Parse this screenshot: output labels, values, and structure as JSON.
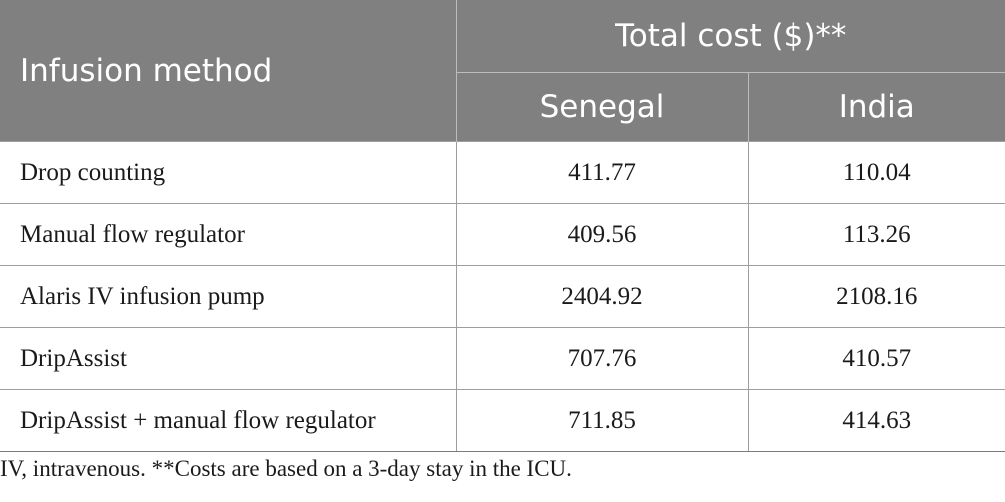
{
  "table": {
    "header": {
      "method_label": "Infusion method",
      "total_cost_label": "Total cost ($)**",
      "country_1": "Senegal",
      "country_2": "India"
    },
    "rows": [
      {
        "method": "Drop counting",
        "senegal": "411.77",
        "india": "110.04"
      },
      {
        "method": "Manual flow regulator",
        "senegal": "409.56",
        "india": "113.26"
      },
      {
        "method": "Alaris IV infusion pump",
        "senegal": "2404.92",
        "india": "2108.16"
      },
      {
        "method": "DripAssist",
        "senegal": "707.76",
        "india": "410.57"
      },
      {
        "method": "DripAssist + manual flow regulator",
        "senegal": "711.85",
        "india": "414.63"
      }
    ]
  },
  "footnote": "IV, intravenous. **Costs are based on a 3-day stay in the ICU.",
  "colors": {
    "header_bg": "#808080",
    "header_text": "#ffffff",
    "rule": "#9e9e9e",
    "body_text": "#1a1a1a"
  }
}
